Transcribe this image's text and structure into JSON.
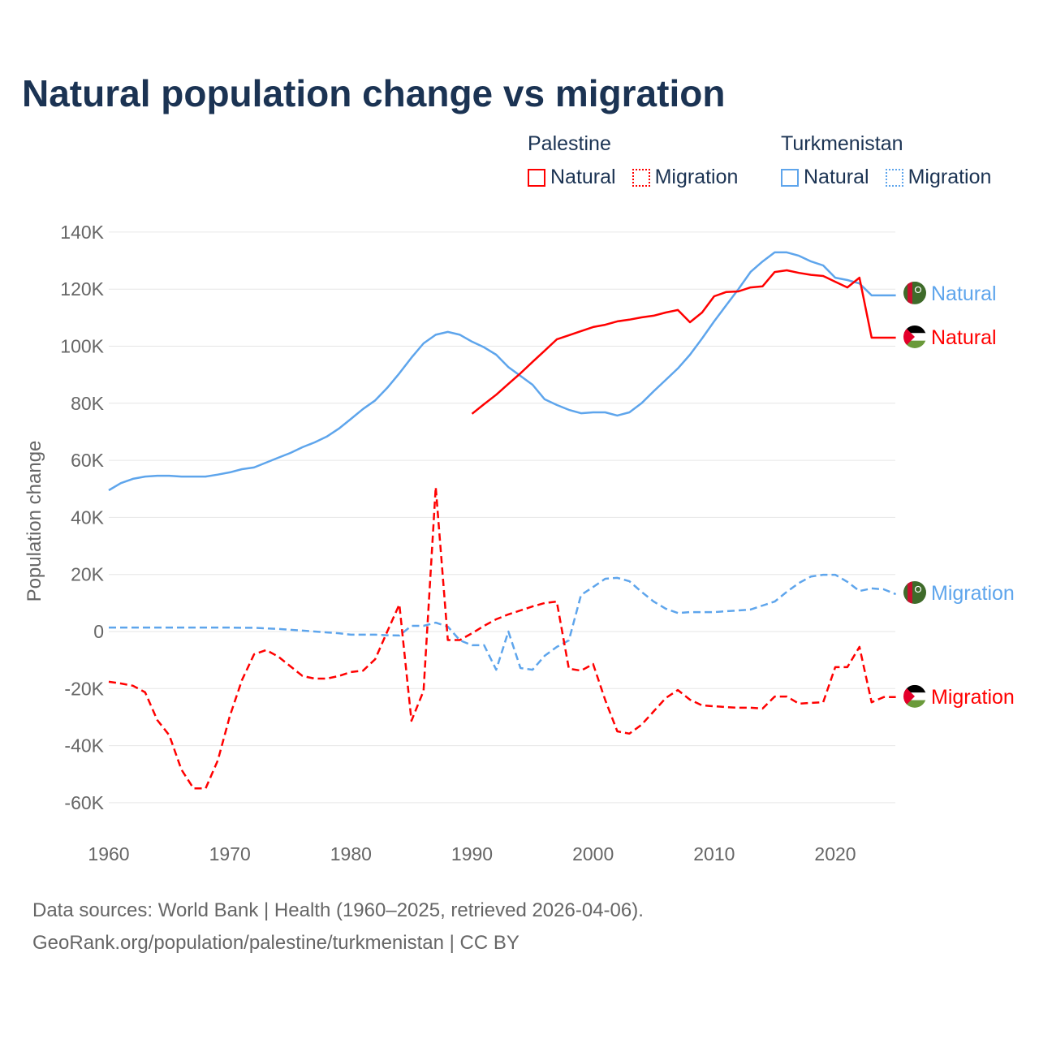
{
  "chart_data": {
    "type": "line",
    "title": "Natural population change vs migration",
    "xlabel": "",
    "ylabel": "Population change",
    "xlim": [
      1960,
      2025
    ],
    "ylim": [
      -70000,
      145000
    ],
    "x_ticks": [
      1960,
      1970,
      1980,
      1990,
      2000,
      2010,
      2020
    ],
    "x_tick_labels": [
      "1960",
      "1970",
      "1980",
      "1990",
      "2000",
      "2010",
      "2020"
    ],
    "y_ticks": [
      140000,
      120000,
      100000,
      80000,
      60000,
      40000,
      20000,
      0,
      -20000,
      -40000,
      -60000
    ],
    "y_tick_labels": [
      "140K",
      "120K",
      "100K",
      "80K",
      "60K",
      "40K",
      "20K",
      "0",
      "-20K",
      "-40K",
      "-60K"
    ],
    "grid": true,
    "legend_placement": "top-right",
    "legend_groups": [
      {
        "country": "Palestine",
        "items": [
          "Natural",
          "Migration"
        ],
        "color": "#ff0000"
      },
      {
        "country": "Turkmenistan",
        "items": [
          "Natural",
          "Migration"
        ],
        "color": "#5ea5ec"
      }
    ],
    "series": [
      {
        "name": "Turkmenistan Natural",
        "label": "Natural",
        "color": "#5ea5ec",
        "dashed": false,
        "start_year": 1960,
        "values": [
          49.5,
          52,
          53.5,
          54.3,
          54.6,
          54.6,
          54.3,
          54.3,
          54.3,
          55,
          55.8,
          56.9,
          57.5,
          59.2,
          60.9,
          62.6,
          64.6,
          66.3,
          68.3,
          71.1,
          74.5,
          78,
          81,
          85.4,
          90.5,
          96,
          101,
          104,
          105,
          104,
          101.6,
          99.6,
          97,
          92.7,
          89.6,
          86.5,
          81.4,
          79.4,
          77.7,
          76.5,
          76.8,
          76.8,
          75.7,
          76.8,
          80,
          84.2,
          88.2,
          92.2,
          97,
          102.7,
          108.7,
          114.4,
          120,
          126,
          129.7,
          132.9,
          132.9,
          131.7,
          129.7,
          128.3,
          124,
          123.2,
          122,
          117.8,
          117.8,
          117.8
        ]
      },
      {
        "name": "Palestine Natural",
        "label": "Natural",
        "color": "#ff0000",
        "dashed": false,
        "start_year": 1990,
        "values": [
          76.3,
          79.7,
          83,
          86.8,
          90.5,
          94.5,
          98.4,
          102.4,
          103.8,
          105.3,
          106.7,
          107.5,
          108.7,
          109.3,
          110.1,
          110.7,
          111.8,
          112.7,
          108.4,
          111.8,
          117.5,
          119,
          119.2,
          120.6,
          121,
          126,
          126.6,
          125.7,
          125,
          124.6,
          122.6,
          120.6,
          124,
          103,
          103,
          103
        ]
      },
      {
        "name": "Turkmenistan Migration",
        "label": "Migration",
        "color": "#5ea5ec",
        "dashed": true,
        "start_year": 1960,
        "values": [
          1.4,
          1.4,
          1.4,
          1.4,
          1.4,
          1.4,
          1.4,
          1.4,
          1.4,
          1.4,
          1.4,
          1.3,
          1.3,
          1.1,
          0.9,
          0.6,
          0.3,
          0,
          -0.3,
          -0.6,
          -1.1,
          -1.1,
          -1.1,
          -1.3,
          -1.4,
          2,
          2,
          3.1,
          1.7,
          -3.1,
          -4.8,
          -4.8,
          -13.4,
          0,
          -12.8,
          -13.4,
          -8.5,
          -5.4,
          -3.1,
          12.8,
          15.6,
          18.5,
          18.8,
          17.6,
          13.9,
          10.5,
          8,
          6.5,
          6.8,
          6.8,
          6.8,
          7.1,
          7.4,
          7.7,
          9.1,
          10.5,
          13.9,
          17,
          19.3,
          19.9,
          19.9,
          17.4,
          14.2,
          15.1,
          14.8,
          13.1
        ]
      },
      {
        "name": "Palestine Migration",
        "label": "Migration",
        "color": "#ff0000",
        "dashed": true,
        "start_year": 1960,
        "values": [
          -17.6,
          -18.2,
          -19,
          -21.3,
          -31,
          -36.4,
          -48.4,
          -55,
          -55,
          -45.2,
          -29.6,
          -17,
          -8,
          -6.5,
          -8.8,
          -12.2,
          -15.6,
          -16.5,
          -16.5,
          -15.6,
          -14.2,
          -13.7,
          -9.7,
          0,
          9.5,
          -31.3,
          -20.8,
          50.6,
          -3,
          -3,
          -0.6,
          2,
          4.3,
          6,
          7.4,
          8.8,
          10,
          10.5,
          -13,
          -13.7,
          -11.4,
          -24,
          -35,
          -35.8,
          -32.7,
          -28,
          -23.3,
          -20.5,
          -23.9,
          -25.9,
          -26.2,
          -26.5,
          -26.7,
          -26.7,
          -27,
          -22.8,
          -22.8,
          -25.3,
          -25,
          -24.8,
          -12.5,
          -12.5,
          -5.4,
          -24.8,
          -23,
          -23
        ]
      }
    ],
    "value_unit": "thousands"
  },
  "legend": {
    "palestine": "Palestine",
    "turkmenistan": "Turkmenistan",
    "natural": "Natural",
    "migration": "Migration"
  },
  "footer": {
    "line1": "Data sources: World Bank | Health (1960–2025, retrieved 2026-04-06).",
    "line2": "GeoRank.org/population/palestine/turkmenistan | CC BY"
  }
}
